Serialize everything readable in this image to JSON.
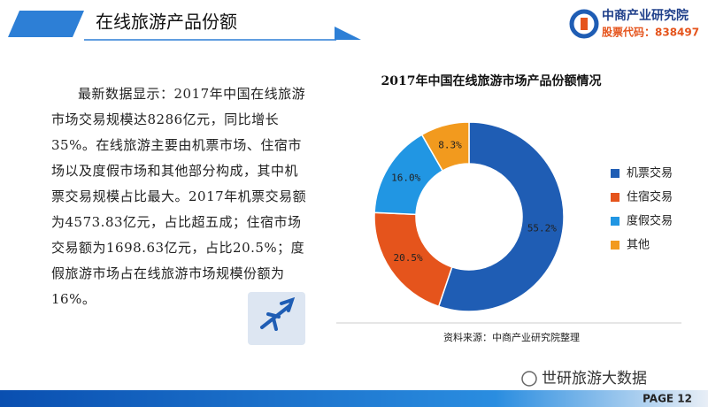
{
  "header": {
    "title": "在线旅游产品份额",
    "logo_name": "中商产业研究院",
    "logo_code": "股票代码：838497"
  },
  "body_text": "最新数据显示：2017年中国在线旅游市场交易规模达8286亿元，同比增长35%。在线旅游主要由机票市场、住宿市场以及度假市场和其他部分构成，其中机票交易规模占比最大。2017年机票交易额为4573.83亿元，占比超五成；住宿市场交易额为1698.63亿元，占比20.5%；度假旅游市场占在线旅游市场规模份额为16%。",
  "chart_data": {
    "type": "donut",
    "title": "2017年中国在线旅游市场产品份额情况",
    "categories": [
      "机票交易",
      "住宿交易",
      "度假交易",
      "其他"
    ],
    "values": [
      55.2,
      20.5,
      16,
      8.3
    ],
    "value_labels": [
      "55.2%",
      "20.5%",
      "16.0%",
      "8.3%"
    ],
    "colors": [
      "#1f5db4",
      "#e5541c",
      "#2196e3",
      "#f29a1e"
    ],
    "legend": "right",
    "source": "资料来源：中商产业研究院整理"
  },
  "footer": {
    "watermark": "世研旅游大数据",
    "page": "PAGE 12"
  }
}
